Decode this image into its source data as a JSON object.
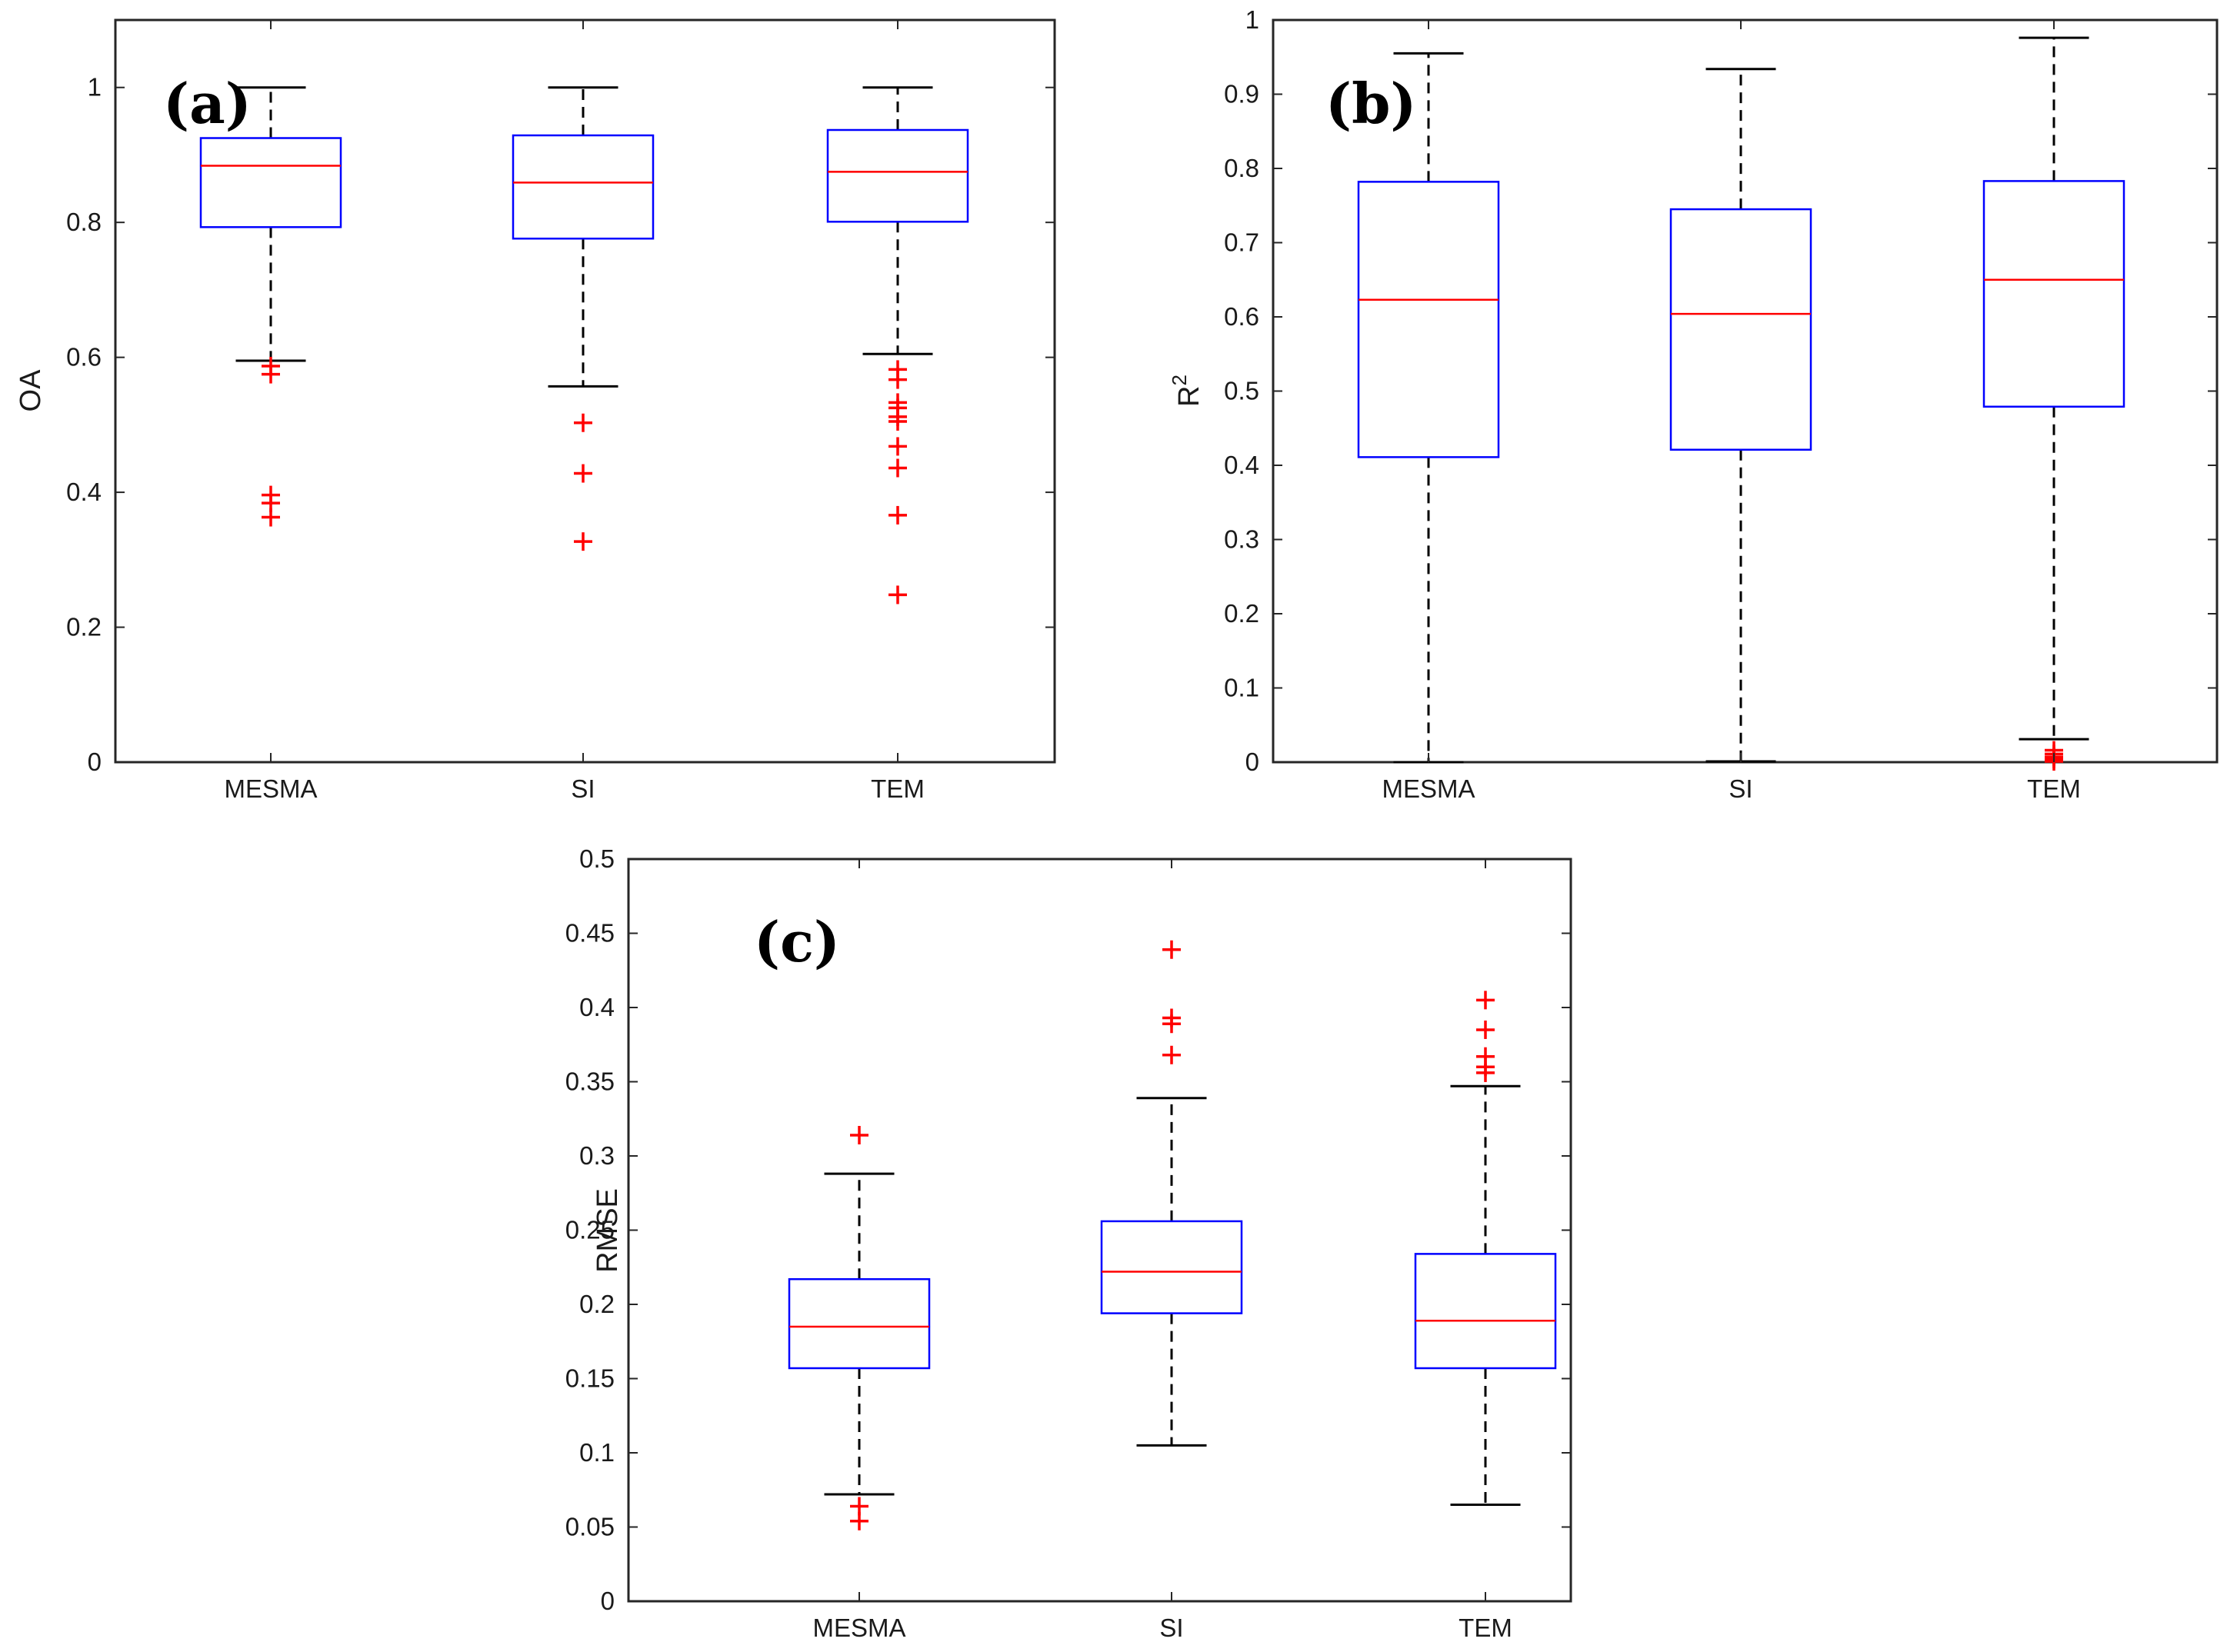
{
  "chart_data": [
    {
      "type": "box",
      "panel": "(a)",
      "ylabel": "OA",
      "ylim": [
        0,
        1.1
      ],
      "yticks": [
        0,
        0.2,
        0.4,
        0.6,
        0.8,
        1
      ],
      "ytick_labels": [
        "0",
        "0.2",
        "0.4",
        "0.6",
        "0.8",
        "1"
      ],
      "categories": [
        "MESMA",
        "SI",
        "TEM"
      ],
      "boxes": [
        {
          "name": "MESMA",
          "whisker_low": 0.595,
          "q1": 0.793,
          "median": 0.884,
          "q3": 0.925,
          "whisker_high": 1.0,
          "outliers": [
            0.587,
            0.575,
            0.396,
            0.384,
            0.363
          ]
        },
        {
          "name": "SI",
          "whisker_low": 0.557,
          "q1": 0.776,
          "median": 0.859,
          "q3": 0.929,
          "whisker_high": 1.0,
          "outliers": [
            0.503,
            0.428,
            0.327
          ]
        },
        {
          "name": "TEM",
          "whisker_low": 0.605,
          "q1": 0.801,
          "median": 0.875,
          "q3": 0.937,
          "whisker_high": 1.0,
          "outliers": [
            0.582,
            0.567,
            0.533,
            0.525,
            0.512,
            0.505,
            0.468,
            0.436,
            0.366,
            0.248
          ]
        }
      ]
    },
    {
      "type": "box",
      "panel": "(b)",
      "ylabel": "R",
      "ylabel_superscript": "2",
      "ylim": [
        0,
        1
      ],
      "yticks": [
        0,
        0.1,
        0.2,
        0.3,
        0.4,
        0.5,
        0.6,
        0.7,
        0.8,
        0.9,
        1
      ],
      "ytick_labels": [
        "0",
        "0.1",
        "0.2",
        "0.3",
        "0.4",
        "0.5",
        "0.6",
        "0.7",
        "0.8",
        "0.9",
        "1"
      ],
      "categories": [
        "MESMA",
        "SI",
        "TEM"
      ],
      "boxes": [
        {
          "name": "MESMA",
          "whisker_low": 0.0,
          "q1": 0.411,
          "median": 0.623,
          "q3": 0.782,
          "whisker_high": 0.955,
          "outliers": []
        },
        {
          "name": "SI",
          "whisker_low": 0.001,
          "q1": 0.421,
          "median": 0.604,
          "q3": 0.745,
          "whisker_high": 0.934,
          "outliers": []
        },
        {
          "name": "TEM",
          "whisker_low": 0.031,
          "q1": 0.479,
          "median": 0.65,
          "q3": 0.783,
          "whisker_high": 0.976,
          "outliers": [
            0.016,
            0.011,
            0.007,
            0.004,
            0.001
          ]
        }
      ]
    },
    {
      "type": "box",
      "panel": "(c)",
      "ylabel": "RMSE",
      "ylim": [
        0,
        0.5
      ],
      "yticks": [
        0,
        0.05,
        0.1,
        0.15,
        0.2,
        0.25,
        0.3,
        0.35,
        0.4,
        0.45,
        0.5
      ],
      "ytick_labels": [
        "0",
        "0.05",
        "0.1",
        "0.15",
        "0.2",
        "0.25",
        "0.3",
        "0.35",
        "0.4",
        "0.45",
        "0.5"
      ],
      "categories": [
        "MESMA",
        "SI",
        "TEM"
      ],
      "boxes": [
        {
          "name": "MESMA",
          "whisker_low": 0.072,
          "q1": 0.157,
          "median": 0.185,
          "q3": 0.217,
          "whisker_high": 0.288,
          "outliers": [
            0.314,
            0.064,
            0.054
          ]
        },
        {
          "name": "SI",
          "whisker_low": 0.105,
          "q1": 0.194,
          "median": 0.222,
          "q3": 0.256,
          "whisker_high": 0.339,
          "outliers": [
            0.439,
            0.393,
            0.389,
            0.368
          ]
        },
        {
          "name": "TEM",
          "whisker_low": 0.065,
          "q1": 0.157,
          "median": 0.189,
          "q3": 0.234,
          "whisker_high": 0.347,
          "outliers": [
            0.405,
            0.385,
            0.367,
            0.36,
            0.356
          ]
        }
      ]
    }
  ],
  "colors": {
    "box": "#0000ff",
    "median": "#ff0000",
    "outlier": "#ff0000",
    "whisker": "#000000",
    "axis": "#262626"
  }
}
